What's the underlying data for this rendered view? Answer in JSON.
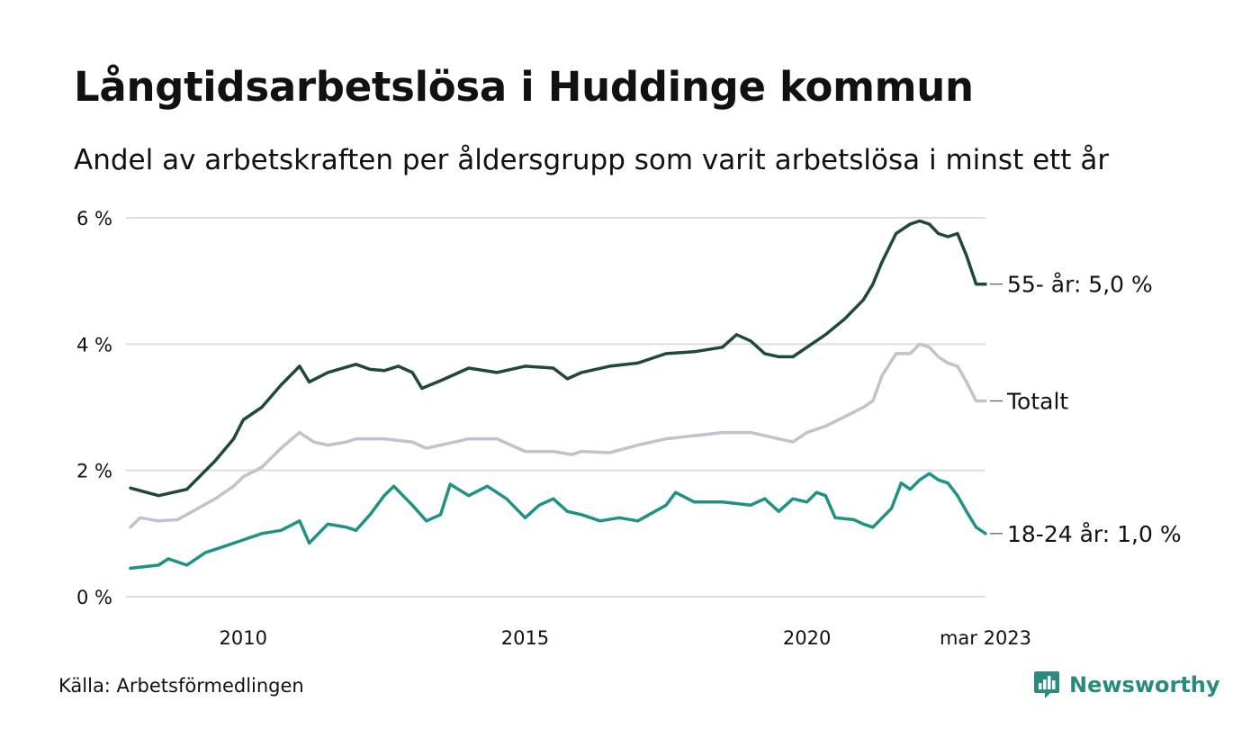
{
  "title": "Långtidsarbetslösa i Huddinge kommun",
  "subtitle": "Andel av arbetskraften per åldersgrupp som varit arbetslösa i minst ett år",
  "source": "Källa: Arbetsförmedlingen",
  "brand": {
    "name": "Newsworthy",
    "icon": "newsworthy-logo-icon",
    "color": "#2a8a7f"
  },
  "colors": {
    "grid": "#dddddd",
    "text": "#111111"
  },
  "chart_data": {
    "type": "line",
    "title": "",
    "xlabel": "",
    "ylabel": "",
    "x_range": [
      2008.0,
      2023.1667
    ],
    "ylim": [
      0,
      6
    ],
    "y_ticks": [
      0,
      2,
      4,
      6
    ],
    "y_tick_labels": [
      "0 %",
      "2 %",
      "4 %",
      "6 %"
    ],
    "x_ticks": [
      2010,
      2015,
      2020,
      2023.1667
    ],
    "x_tick_labels": [
      "2010",
      "2015",
      "2020",
      "mar 2023"
    ],
    "grid": true,
    "legend": "direct labels at right end of lines",
    "series": [
      {
        "name": "55- år",
        "end_label": "55- år: 5,0 %",
        "color": "#20473c",
        "points": [
          [
            2008.0,
            1.72
          ],
          [
            2008.5,
            1.6
          ],
          [
            2009.0,
            1.7
          ],
          [
            2009.5,
            2.15
          ],
          [
            2009.83,
            2.5
          ],
          [
            2010.0,
            2.8
          ],
          [
            2010.33,
            3.0
          ],
          [
            2010.67,
            3.35
          ],
          [
            2011.0,
            3.65
          ],
          [
            2011.17,
            3.4
          ],
          [
            2011.5,
            3.55
          ],
          [
            2012.0,
            3.68
          ],
          [
            2012.25,
            3.6
          ],
          [
            2012.5,
            3.58
          ],
          [
            2012.75,
            3.65
          ],
          [
            2013.0,
            3.55
          ],
          [
            2013.17,
            3.3
          ],
          [
            2013.5,
            3.42
          ],
          [
            2014.0,
            3.62
          ],
          [
            2014.5,
            3.55
          ],
          [
            2015.0,
            3.65
          ],
          [
            2015.5,
            3.62
          ],
          [
            2015.75,
            3.45
          ],
          [
            2016.0,
            3.55
          ],
          [
            2016.5,
            3.65
          ],
          [
            2017.0,
            3.7
          ],
          [
            2017.5,
            3.85
          ],
          [
            2018.0,
            3.88
          ],
          [
            2018.5,
            3.95
          ],
          [
            2018.75,
            4.15
          ],
          [
            2019.0,
            4.05
          ],
          [
            2019.25,
            3.85
          ],
          [
            2019.5,
            3.8
          ],
          [
            2019.75,
            3.8
          ],
          [
            2020.0,
            3.95
          ],
          [
            2020.33,
            4.15
          ],
          [
            2020.67,
            4.4
          ],
          [
            2021.0,
            4.7
          ],
          [
            2021.17,
            4.95
          ],
          [
            2021.33,
            5.3
          ],
          [
            2021.58,
            5.75
          ],
          [
            2021.83,
            5.9
          ],
          [
            2022.0,
            5.95
          ],
          [
            2022.17,
            5.9
          ],
          [
            2022.33,
            5.75
          ],
          [
            2022.5,
            5.7
          ],
          [
            2022.67,
            5.75
          ],
          [
            2022.83,
            5.4
          ],
          [
            2023.0,
            4.95
          ],
          [
            2023.1667,
            4.95
          ]
        ]
      },
      {
        "name": "Totalt",
        "end_label": "Totalt",
        "color": "#c3c1cc",
        "points": [
          [
            2008.0,
            1.1
          ],
          [
            2008.17,
            1.25
          ],
          [
            2008.5,
            1.2
          ],
          [
            2008.83,
            1.22
          ],
          [
            2009.0,
            1.3
          ],
          [
            2009.5,
            1.55
          ],
          [
            2009.83,
            1.75
          ],
          [
            2010.0,
            1.9
          ],
          [
            2010.33,
            2.05
          ],
          [
            2010.67,
            2.35
          ],
          [
            2011.0,
            2.6
          ],
          [
            2011.25,
            2.45
          ],
          [
            2011.5,
            2.4
          ],
          [
            2011.83,
            2.45
          ],
          [
            2012.0,
            2.5
          ],
          [
            2012.5,
            2.5
          ],
          [
            2013.0,
            2.45
          ],
          [
            2013.25,
            2.35
          ],
          [
            2013.5,
            2.4
          ],
          [
            2014.0,
            2.5
          ],
          [
            2014.5,
            2.5
          ],
          [
            2015.0,
            2.3
          ],
          [
            2015.5,
            2.3
          ],
          [
            2015.83,
            2.25
          ],
          [
            2016.0,
            2.3
          ],
          [
            2016.5,
            2.28
          ],
          [
            2017.0,
            2.4
          ],
          [
            2017.5,
            2.5
          ],
          [
            2018.0,
            2.55
          ],
          [
            2018.5,
            2.6
          ],
          [
            2019.0,
            2.6
          ],
          [
            2019.5,
            2.5
          ],
          [
            2019.75,
            2.45
          ],
          [
            2020.0,
            2.6
          ],
          [
            2020.33,
            2.7
          ],
          [
            2020.67,
            2.85
          ],
          [
            2021.0,
            3.0
          ],
          [
            2021.17,
            3.1
          ],
          [
            2021.33,
            3.5
          ],
          [
            2021.58,
            3.85
          ],
          [
            2021.83,
            3.85
          ],
          [
            2022.0,
            4.0
          ],
          [
            2022.17,
            3.95
          ],
          [
            2022.33,
            3.8
          ],
          [
            2022.5,
            3.7
          ],
          [
            2022.67,
            3.65
          ],
          [
            2022.83,
            3.4
          ],
          [
            2023.0,
            3.1
          ],
          [
            2023.1667,
            3.1
          ]
        ]
      },
      {
        "name": "18-24 år",
        "end_label": "18-24 år: 1,0 %",
        "color": "#1f9185",
        "points": [
          [
            2008.0,
            0.45
          ],
          [
            2008.5,
            0.5
          ],
          [
            2008.67,
            0.6
          ],
          [
            2009.0,
            0.5
          ],
          [
            2009.33,
            0.7
          ],
          [
            2009.67,
            0.8
          ],
          [
            2010.0,
            0.9
          ],
          [
            2010.33,
            1.0
          ],
          [
            2010.67,
            1.05
          ],
          [
            2011.0,
            1.2
          ],
          [
            2011.17,
            0.85
          ],
          [
            2011.5,
            1.15
          ],
          [
            2011.83,
            1.1
          ],
          [
            2012.0,
            1.05
          ],
          [
            2012.25,
            1.3
          ],
          [
            2012.5,
            1.6
          ],
          [
            2012.67,
            1.75
          ],
          [
            2013.0,
            1.45
          ],
          [
            2013.25,
            1.2
          ],
          [
            2013.5,
            1.3
          ],
          [
            2013.67,
            1.78
          ],
          [
            2014.0,
            1.6
          ],
          [
            2014.33,
            1.75
          ],
          [
            2014.67,
            1.55
          ],
          [
            2015.0,
            1.25
          ],
          [
            2015.25,
            1.45
          ],
          [
            2015.5,
            1.55
          ],
          [
            2015.75,
            1.35
          ],
          [
            2016.0,
            1.3
          ],
          [
            2016.33,
            1.2
          ],
          [
            2016.67,
            1.25
          ],
          [
            2017.0,
            1.2
          ],
          [
            2017.5,
            1.45
          ],
          [
            2017.67,
            1.65
          ],
          [
            2018.0,
            1.5
          ],
          [
            2018.5,
            1.5
          ],
          [
            2019.0,
            1.45
          ],
          [
            2019.25,
            1.55
          ],
          [
            2019.5,
            1.35
          ],
          [
            2019.75,
            1.55
          ],
          [
            2020.0,
            1.5
          ],
          [
            2020.17,
            1.65
          ],
          [
            2020.33,
            1.6
          ],
          [
            2020.5,
            1.25
          ],
          [
            2020.83,
            1.22
          ],
          [
            2021.0,
            1.15
          ],
          [
            2021.17,
            1.1
          ],
          [
            2021.5,
            1.4
          ],
          [
            2021.67,
            1.8
          ],
          [
            2021.83,
            1.7
          ],
          [
            2022.0,
            1.85
          ],
          [
            2022.17,
            1.95
          ],
          [
            2022.33,
            1.85
          ],
          [
            2022.5,
            1.8
          ],
          [
            2022.67,
            1.6
          ],
          [
            2022.83,
            1.35
          ],
          [
            2023.0,
            1.1
          ],
          [
            2023.1667,
            1.0
          ]
        ]
      }
    ]
  }
}
